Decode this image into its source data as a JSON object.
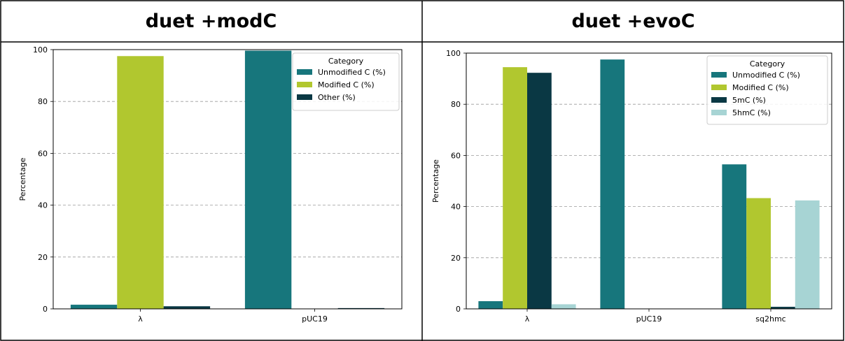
{
  "panels": [
    {
      "title": "duet +modC"
    },
    {
      "title": "duet +evoC"
    }
  ],
  "colors": {
    "unmodified": "#17767c",
    "modified": "#b1c72f",
    "other": "#0a3844",
    "hmc": "#a7d4d4",
    "grid": "#9a9a9a"
  },
  "chart_data": [
    {
      "type": "bar",
      "title": "",
      "xlabel": "",
      "ylabel": "Percentage",
      "ylim": [
        0,
        100
      ],
      "yticks": [
        "0",
        "20",
        "40",
        "60",
        "80",
        "100"
      ],
      "categories": [
        "λ",
        "pUC19"
      ],
      "legend": {
        "title": "Category",
        "placement": "top-right"
      },
      "grid": "horizontal dashed",
      "series": [
        {
          "name": "Unmodified C (%)",
          "color_key": "unmodified",
          "values": [
            1.6,
            99.6
          ]
        },
        {
          "name": "Modified C (%)",
          "color_key": "modified",
          "values": [
            97.5,
            0
          ]
        },
        {
          "name": "Other (%)",
          "color_key": "other",
          "values": [
            1.0,
            0.3
          ]
        }
      ]
    },
    {
      "type": "bar",
      "title": "",
      "xlabel": "",
      "ylabel": "Percentage",
      "ylim": [
        0,
        100
      ],
      "yticks": [
        "0",
        "20",
        "40",
        "60",
        "80",
        "100"
      ],
      "categories": [
        "λ",
        "pUC19",
        "sq2hmc"
      ],
      "legend": {
        "title": "Category",
        "placement": "top-right"
      },
      "grid": "horizontal dashed",
      "series": [
        {
          "name": "Unmodified C (%)",
          "color_key": "unmodified",
          "values": [
            3.0,
            97.5,
            56.5
          ]
        },
        {
          "name": "Modified C (%)",
          "color_key": "modified",
          "values": [
            94.5,
            0,
            43.3
          ]
        },
        {
          "name": "5mC (%)",
          "color_key": "other",
          "values": [
            92.3,
            0,
            0.8
          ]
        },
        {
          "name": "5hmC (%)",
          "color_key": "hmc",
          "values": [
            1.8,
            0,
            42.4
          ]
        }
      ]
    }
  ]
}
